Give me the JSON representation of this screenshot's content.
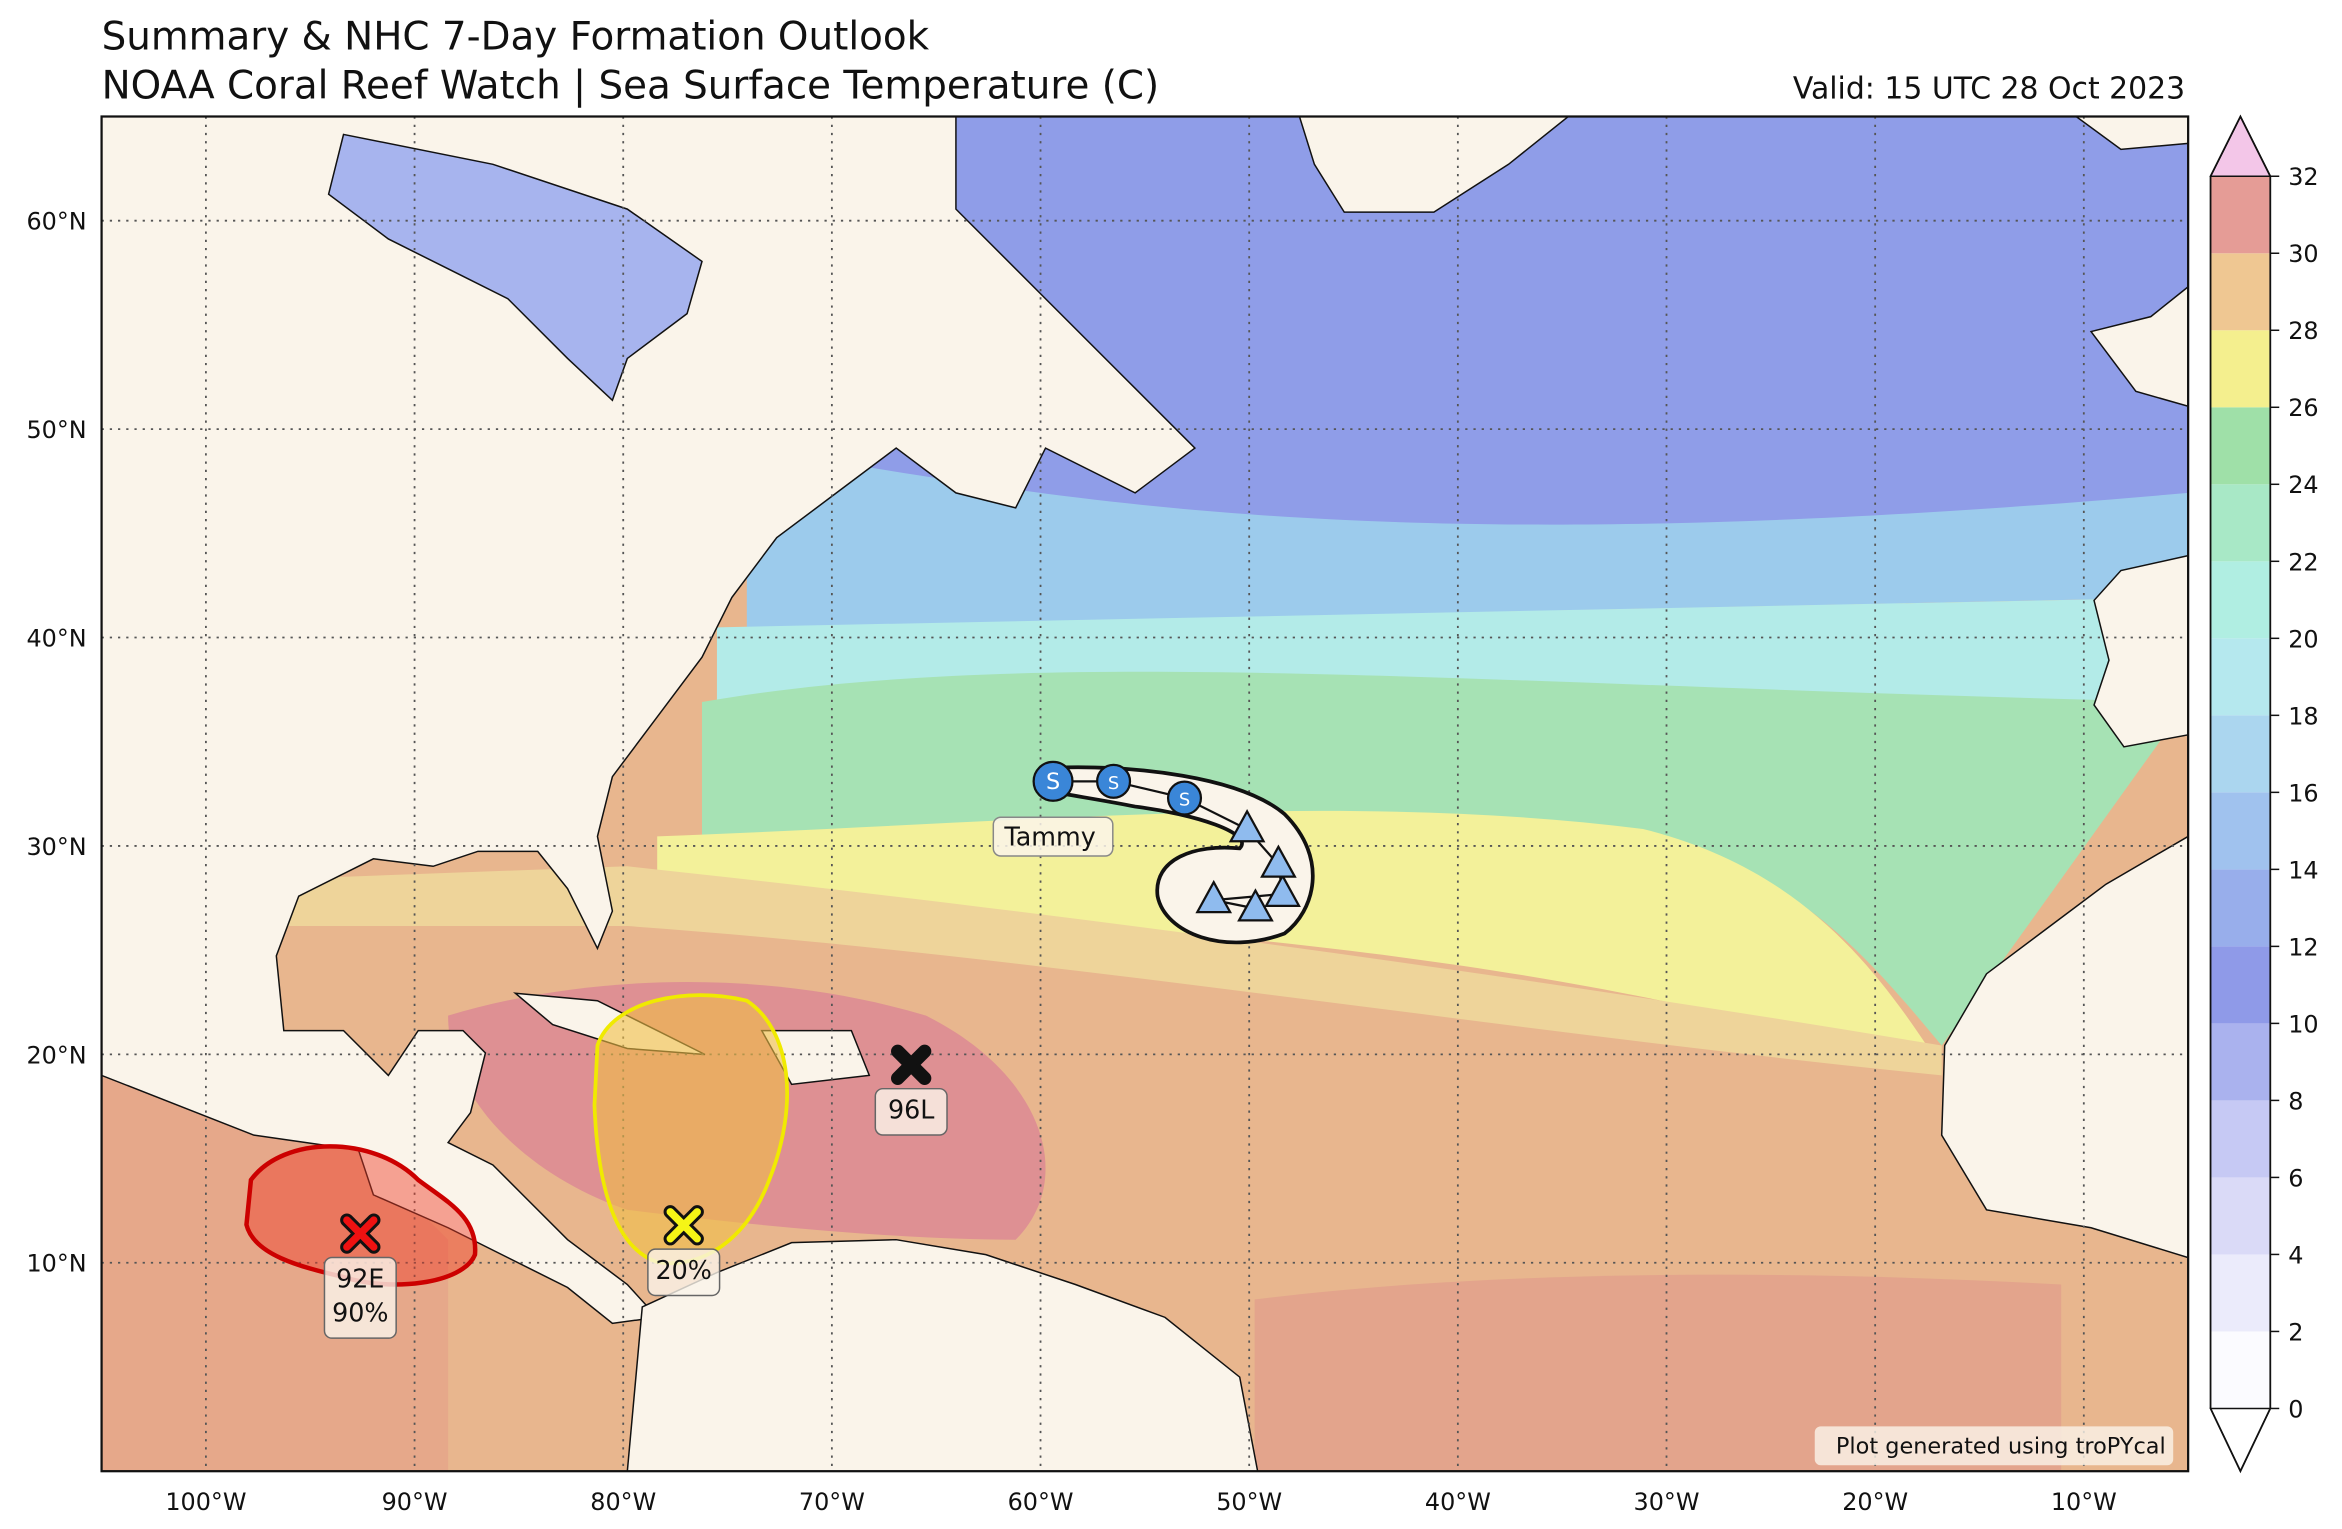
{
  "map": {
    "title": "Summary & NHC 7-Day Formation Outlook",
    "subtitle": "NOAA Coral Reef Watch | Sea Surface Temperature (C)",
    "valid": "Valid: 15 UTC 28 Oct 2023",
    "credit": "Plot generated using troPYcal",
    "lonlim": [
      -105,
      -5
    ],
    "latlim": [
      0,
      65
    ],
    "lon_ticks": [
      {
        "value": -100,
        "label": "100°W"
      },
      {
        "value": -90,
        "label": "90°W"
      },
      {
        "value": -80,
        "label": "80°W"
      },
      {
        "value": -70,
        "label": "70°W"
      },
      {
        "value": -60,
        "label": "60°W"
      },
      {
        "value": -50,
        "label": "50°W"
      },
      {
        "value": -40,
        "label": "40°W"
      },
      {
        "value": -30,
        "label": "30°W"
      },
      {
        "value": -20,
        "label": "20°W"
      },
      {
        "value": -10,
        "label": "10°W"
      }
    ],
    "lat_ticks": [
      {
        "value": 10,
        "label": "10°N"
      },
      {
        "value": 20,
        "label": "20°N"
      },
      {
        "value": 30,
        "label": "30°N"
      },
      {
        "value": 40,
        "label": "40°N"
      },
      {
        "value": 50,
        "label": "50°N"
      },
      {
        "value": 60,
        "label": "60°N"
      }
    ],
    "grid": true,
    "colorbar": {
      "lim": [
        0,
        32
      ],
      "ticks": [
        0,
        2,
        4,
        6,
        8,
        10,
        12,
        14,
        16,
        18,
        20,
        22,
        24,
        26,
        28,
        30,
        32
      ],
      "colors": [
        "#fbfbff",
        "#ebebfb",
        "#dadaf7",
        "#c6c9f4",
        "#aab2ee",
        "#8f9ae8",
        "#98aeeb",
        "#a0c2ee",
        "#abd6ef",
        "#b5e8ee",
        "#b0eee2",
        "#a8e8c6",
        "#9fe0a8",
        "#f4ef8e",
        "#efc792",
        "#e59c96"
      ],
      "over_color": "#f3c6e8",
      "under_color": "#ffffff"
    }
  },
  "storms": [
    {
      "name": "Tammy",
      "track": [
        {
          "lon": -59.4,
          "lat": 33.1,
          "symbol": "S"
        },
        {
          "lon": -56.5,
          "lat": 33.1,
          "symbol": "S"
        },
        {
          "lon": -53.1,
          "lat": 32.3,
          "symbol": "S"
        },
        {
          "lon": -50.1,
          "lat": 30.8
        },
        {
          "lon": -48.6,
          "lat": 29.1
        },
        {
          "lon": -48.4,
          "lat": 27.7
        },
        {
          "lon": -51.7,
          "lat": 27.4
        },
        {
          "lon": -49.7,
          "lat": 27.0
        }
      ]
    }
  ],
  "invests": [
    {
      "label": "96L",
      "lon": -66.2,
      "lat": 19.5,
      "color": "#111111"
    },
    {
      "label": "92E",
      "probability": "90%",
      "lon": -92.6,
      "lat": 11.4,
      "color": "#ee1111"
    },
    {
      "probability": "20%",
      "lon": -77.1,
      "lat": 11.8,
      "color": "#f5f516"
    }
  ]
}
